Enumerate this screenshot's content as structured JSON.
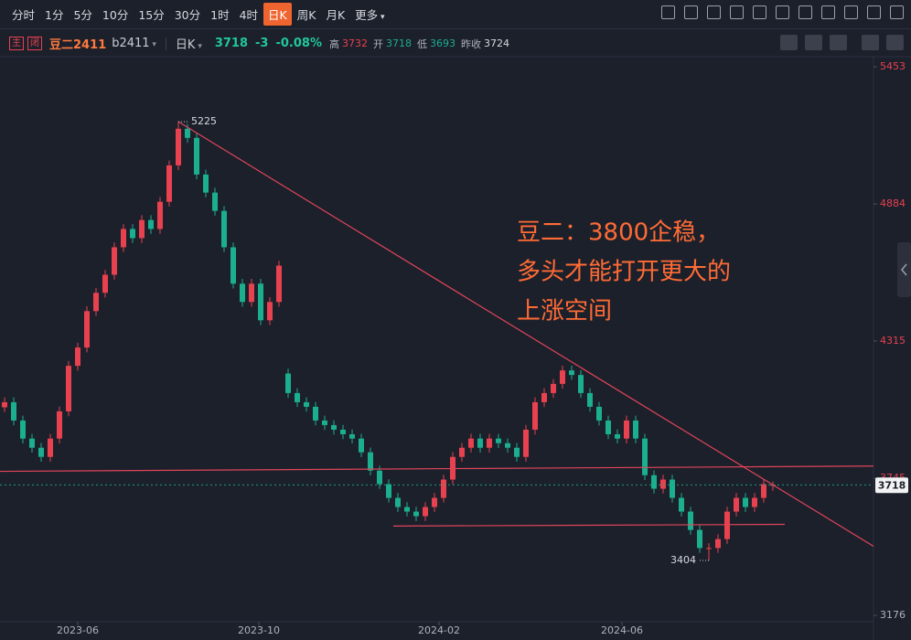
{
  "toolbar": {
    "periods": [
      "分时",
      "1分",
      "5分",
      "10分",
      "15分",
      "30分",
      "1时",
      "4时",
      "日K",
      "周K",
      "月K"
    ],
    "active": 8,
    "more": "更多"
  },
  "quote": {
    "badges": [
      "主",
      "闭"
    ],
    "symbol": "豆二2411",
    "code": "b2411",
    "period": "日K",
    "change": "-3",
    "change_pct": "-0.08%",
    "high_label": "高",
    "open_label": "开",
    "low_label": "低",
    "prev_close_label": "昨收"
  },
  "chart_data": {
    "type": "candlestick",
    "open": [
      4040,
      4061,
      3985,
      3910,
      3872,
      3834,
      3910,
      4023,
      4212,
      4288,
      4439,
      4515,
      4590,
      4704,
      4780,
      4742,
      4817,
      4780,
      4893,
      5044,
      5196,
      5158,
      5006,
      4931,
      4855,
      4704,
      4553,
      4477,
      4553,
      4401,
      4477,
      4180,
      4099,
      4061,
      4042,
      3985,
      3966,
      3947,
      3928,
      3910,
      3853,
      3777,
      3721,
      3664,
      3626,
      3607,
      3588,
      3626,
      3664,
      3740,
      3834,
      3872,
      3910,
      3872,
      3910,
      3891,
      3872,
      3834,
      3947,
      4061,
      4099,
      4137,
      4193,
      4174,
      4099,
      4042,
      3985,
      3928,
      3910,
      3985,
      3910,
      3758,
      3702,
      3740,
      3664,
      3607,
      3531,
      3456,
      3456,
      3493,
      3607,
      3664,
      3626,
      3664,
      3718
    ],
    "high": [
      4081,
      4081,
      4005,
      3930,
      3892,
      3930,
      4043,
      4232,
      4308,
      4459,
      4535,
      4610,
      4724,
      4800,
      4800,
      4837,
      4837,
      4913,
      5064,
      5225,
      5216,
      5178,
      5026,
      4951,
      4875,
      4724,
      4573,
      4573,
      4573,
      4497,
      4648,
      4200,
      4119,
      4081,
      4062,
      4005,
      3986,
      3967,
      3948,
      3930,
      3873,
      3797,
      3741,
      3684,
      3646,
      3627,
      3646,
      3684,
      3760,
      3854,
      3892,
      3930,
      3930,
      3930,
      3930,
      3911,
      3892,
      3967,
      4081,
      4119,
      4157,
      4213,
      4213,
      4194,
      4119,
      4062,
      4005,
      3948,
      4005,
      4005,
      3930,
      3778,
      3760,
      3760,
      3684,
      3627,
      3551,
      3476,
      3513,
      3627,
      3684,
      3684,
      3684,
      3741,
      3732
    ],
    "low": [
      4020,
      3965,
      3890,
      3852,
      3814,
      3814,
      3890,
      4003,
      4192,
      4268,
      4419,
      4495,
      4570,
      4684,
      4722,
      4722,
      4760,
      4760,
      4873,
      5024,
      5138,
      4986,
      4911,
      4835,
      4684,
      4533,
      4457,
      4457,
      4381,
      4381,
      4457,
      4079,
      4041,
      4022,
      3965,
      3946,
      3927,
      3908,
      3890,
      3833,
      3757,
      3701,
      3644,
      3606,
      3587,
      3568,
      3568,
      3606,
      3644,
      3720,
      3814,
      3852,
      3852,
      3852,
      3871,
      3852,
      3814,
      3814,
      3927,
      4041,
      4079,
      4117,
      4154,
      4079,
      4022,
      3965,
      3908,
      3890,
      3890,
      3890,
      3738,
      3682,
      3682,
      3644,
      3587,
      3511,
      3436,
      3404,
      3436,
      3473,
      3587,
      3606,
      3606,
      3644,
      3693
    ],
    "close": [
      4061,
      3985,
      3910,
      3872,
      3834,
      3910,
      4023,
      4212,
      4288,
      4439,
      4515,
      4590,
      4704,
      4780,
      4742,
      4817,
      4780,
      4893,
      5044,
      5196,
      5158,
      5006,
      4931,
      4855,
      4704,
      4553,
      4477,
      4553,
      4401,
      4477,
      4628,
      4099,
      4061,
      4042,
      3985,
      3966,
      3947,
      3928,
      3910,
      3853,
      3777,
      3721,
      3664,
      3626,
      3607,
      3588,
      3626,
      3664,
      3740,
      3834,
      3872,
      3910,
      3872,
      3910,
      3891,
      3872,
      3834,
      3947,
      4061,
      4099,
      4137,
      4193,
      4174,
      4099,
      4042,
      3985,
      3928,
      3910,
      3985,
      3910,
      3758,
      3702,
      3740,
      3664,
      3607,
      3531,
      3456,
      3456,
      3493,
      3607,
      3664,
      3626,
      3664,
      3721,
      3718
    ],
    "up_color": "#e8414f",
    "down_color": "#1bae8f",
    "prev_close": 3724,
    "xlim": [
      -0.5,
      95
    ],
    "xticks": [
      {
        "value": 8,
        "label": "2023-06"
      },
      {
        "value": 27.8,
        "label": "2023-10"
      },
      {
        "value": 47.5,
        "label": "2024-02"
      },
      {
        "value": 67.5,
        "label": "2024-06"
      }
    ],
    "ylim": [
      3150,
      5495
    ],
    "yticks": [
      3176,
      3745,
      4315,
      4884,
      5453
    ],
    "grid": false,
    "max_index": 19,
    "min_index": 77,
    "trendlines": [
      {
        "color": "#e0455a",
        "points": [
          [
            19,
            5225
          ],
          [
            95,
            3463
          ]
        ]
      },
      {
        "color": "#e0455a",
        "points": [
          [
            -0.5,
            3774
          ],
          [
            95,
            3796
          ]
        ]
      },
      {
        "color": "#e0455a",
        "points": [
          [
            42.5,
            3547
          ],
          [
            85.3,
            3554
          ]
        ]
      }
    ],
    "annotation": [
      "豆二：3800企稳，",
      "多头才能打开更大的",
      "上涨空间"
    ],
    "annotation_color": "#ff6b35"
  }
}
